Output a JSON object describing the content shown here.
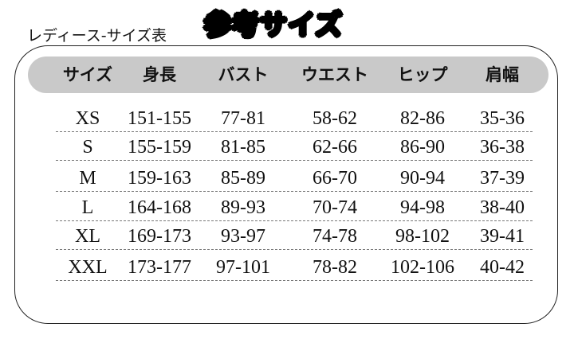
{
  "title": "参考サイズ",
  "subtitle": "レディース-サイズ表",
  "table": {
    "headers": [
      "サイズ",
      "身長",
      "バスト",
      "ウエスト",
      "ヒップ",
      "肩幅"
    ],
    "rows": [
      [
        "XS",
        "151-155",
        "77-81",
        "58-62",
        "82-86",
        "35-36"
      ],
      [
        "S",
        "155-159",
        "81-85",
        "62-66",
        "86-90",
        "36-38"
      ],
      [
        "M",
        "159-163",
        "85-89",
        "66-70",
        "90-94",
        "37-39"
      ],
      [
        "L",
        "164-168",
        "89-93",
        "70-74",
        "94-98",
        "38-40"
      ],
      [
        "XL",
        "169-173",
        "93-97",
        "74-78",
        "98-102",
        "39-41"
      ],
      [
        "XXL",
        "173-177",
        "97-101",
        "78-82",
        "102-106",
        "40-42"
      ]
    ]
  },
  "colors": {
    "header_band": "#c9c9c9",
    "frame": "#222222"
  }
}
